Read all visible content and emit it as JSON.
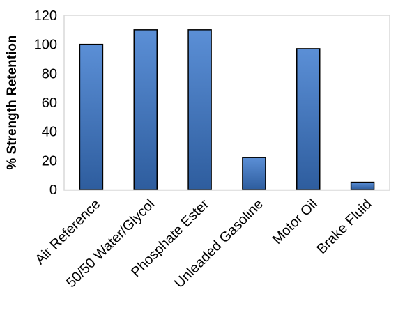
{
  "chart_data": {
    "type": "bar",
    "title": "",
    "xlabel": "",
    "ylabel": "% Strength Retention",
    "categories": [
      "Air Reference",
      "50/50 Water/Glycol",
      "Phosphate Ester",
      "Unleaded Gasoline",
      "Motor Oil",
      "Brake Fluid"
    ],
    "values": [
      100,
      110,
      110,
      22,
      97,
      5
    ],
    "ylim": [
      0,
      120
    ],
    "yticks": [
      0,
      20,
      40,
      60,
      80,
      100,
      120
    ],
    "grid": false,
    "legend": "none",
    "bar_color_top": "#5b8fd6",
    "bar_color_bottom": "#2e5d9e",
    "bar_edge_color": "#000000"
  }
}
